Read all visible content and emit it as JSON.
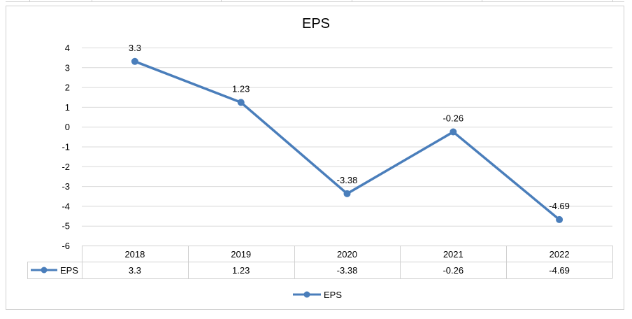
{
  "chart_data": {
    "type": "line",
    "title": "EPS",
    "categories": [
      "2018",
      "2019",
      "2020",
      "2021",
      "2022"
    ],
    "series": [
      {
        "name": "EPS",
        "values": [
          3.3,
          1.23,
          -3.38,
          -0.26,
          -4.69
        ],
        "labels": [
          "3.3",
          "1.23",
          "-3.38",
          "-0.26",
          "-4.69"
        ],
        "color": "#4a7ebb"
      }
    ],
    "yticks": [
      "4",
      "3",
      "2",
      "1",
      "0",
      "-1",
      "-2",
      "-3",
      "-4",
      "-5",
      "-6"
    ],
    "ylim": [
      -6,
      4
    ],
    "grid": true,
    "data_table": true,
    "legend_position": "bottom"
  }
}
